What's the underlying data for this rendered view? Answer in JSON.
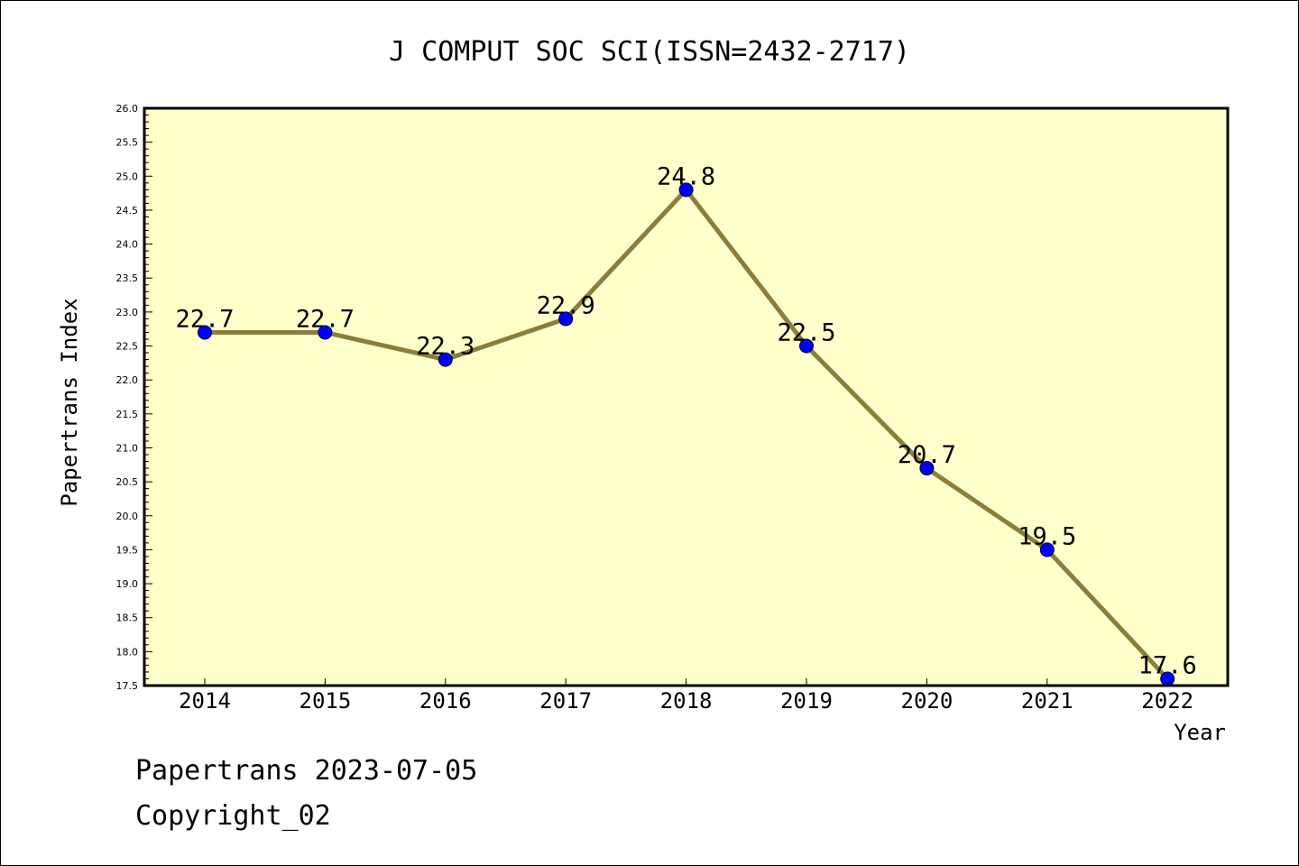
{
  "chart_data": {
    "type": "line",
    "title": "J COMPUT SOC SCI(ISSN=2432-2717)",
    "xlabel": "Year",
    "ylabel": "Papertrans Index",
    "x": [
      "2014",
      "2015",
      "2016",
      "2017",
      "2018",
      "2019",
      "2020",
      "2021",
      "2022"
    ],
    "values": [
      22.7,
      22.7,
      22.3,
      22.9,
      24.8,
      22.5,
      20.7,
      19.5,
      17.6
    ],
    "value_labels": [
      "22.7",
      "22.7",
      "22.3",
      "22.9",
      "24.8",
      "22.5",
      "20.7",
      "19.5",
      "17.6"
    ],
    "ylim": [
      17.5,
      26.0
    ],
    "yticks": [
      "17.5",
      "18.0",
      "18.5",
      "19.0",
      "19.5",
      "20.0",
      "20.5",
      "21.0",
      "21.5",
      "22.0",
      "22.5",
      "23.0",
      "23.5",
      "24.0",
      "24.5",
      "25.0",
      "25.5",
      "26.0"
    ],
    "grid": false,
    "colors": {
      "plot_background": "#ffffcc",
      "line": "#8b7d3a",
      "marker": "#0000ff"
    }
  },
  "footer": {
    "line1": "Papertrans 2023-07-05",
    "line2": "Copyright_02"
  }
}
